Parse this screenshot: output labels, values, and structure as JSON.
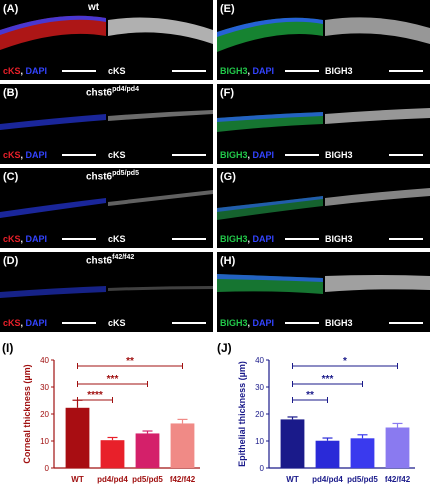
{
  "panels": [
    {
      "label": "(A)",
      "title_main": "wt",
      "title_sup": "",
      "stain": "cKS",
      "stain2": "cKS",
      "counter": "DAPI"
    },
    {
      "label": "(B)",
      "title_main": "chst6",
      "title_sup": "pd4/pd4",
      "stain": "cKS",
      "stain2": "cKS",
      "counter": "DAPI"
    },
    {
      "label": "(C)",
      "title_main": "chst6",
      "title_sup": "pd5/pd5",
      "stain": "cKS",
      "stain2": "cKS",
      "counter": "DAPI"
    },
    {
      "label": "(D)",
      "title_main": "chst6",
      "title_sup": "f42/f42",
      "stain": "cKS",
      "stain2": "cKS",
      "counter": "DAPI"
    },
    {
      "label": "(E)",
      "stain": "BIGH3",
      "stain2": "BIGH3",
      "counter": "DAPI"
    },
    {
      "label": "(F)",
      "stain": "BIGH3",
      "stain2": "BIGH3",
      "counter": "DAPI"
    },
    {
      "label": "(G)",
      "stain": "BIGH3",
      "stain2": "BIGH3",
      "counter": "DAPI"
    },
    {
      "label": "(H)",
      "stain": "BIGH3",
      "stain2": "BIGH3",
      "counter": "DAPI"
    }
  ],
  "chart_data": [
    {
      "type": "bar",
      "panel_label": "(I)",
      "categories": [
        "WT",
        "pd4/pd4",
        "pd5/pd5",
        "f42/f42"
      ],
      "values": [
        22.3,
        10.3,
        12.8,
        16.5
      ],
      "errors": [
        2.8,
        1.0,
        0.9,
        1.5
      ],
      "ylabel": "Corneal thickness (µm)",
      "ylim": [
        0,
        40
      ],
      "yticks": [
        "0",
        "10",
        "20",
        "30",
        "40"
      ],
      "colors": [
        "#a80d12",
        "#e8202a",
        "#d4206a",
        "#f08a86"
      ],
      "axis_color": "#a01010",
      "significance": [
        {
          "from": 0,
          "to": 3,
          "label": "**"
        },
        {
          "from": 0,
          "to": 2,
          "label": "***"
        },
        {
          "from": 0,
          "to": 1,
          "label": "****"
        }
      ]
    },
    {
      "type": "bar",
      "panel_label": "(J)",
      "categories": [
        "WT",
        "pd4/pd4",
        "pd5/pd5",
        "f42/f42"
      ],
      "values": [
        18.0,
        10.1,
        11.0,
        15.0
      ],
      "errors": [
        0.9,
        1.0,
        1.3,
        1.5
      ],
      "ylabel": "Epithelial thickness (µm)",
      "ylim": [
        0,
        40
      ],
      "yticks": [
        "0",
        "10",
        "20",
        "30",
        "40"
      ],
      "colors": [
        "#1a1a8a",
        "#2a2ad8",
        "#3a3aee",
        "#8a7af0"
      ],
      "axis_color": "#1a1a8a",
      "significance": [
        {
          "from": 0,
          "to": 3,
          "label": "*"
        },
        {
          "from": 0,
          "to": 2,
          "label": "***"
        },
        {
          "from": 0,
          "to": 1,
          "label": "**"
        }
      ]
    }
  ]
}
